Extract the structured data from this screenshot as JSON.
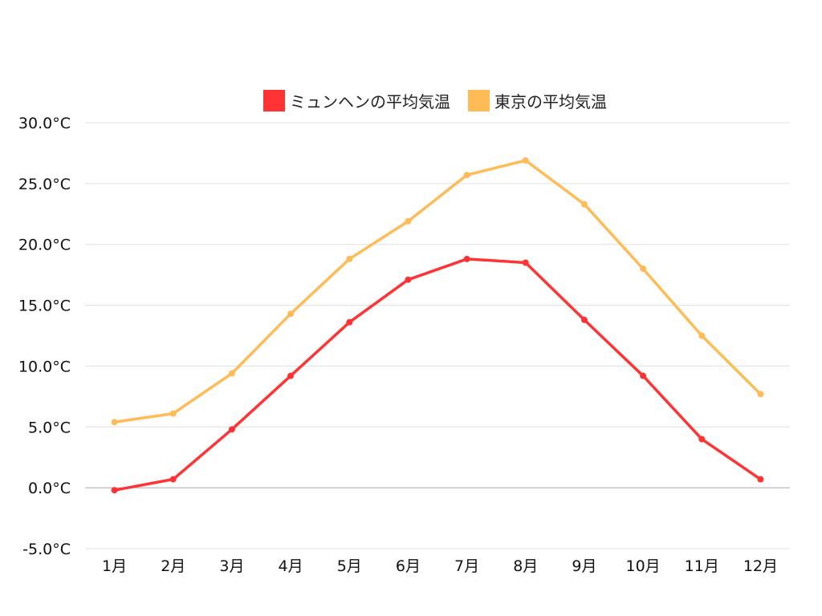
{
  "chart_data": {
    "type": "line",
    "categories": [
      "1月",
      "2月",
      "3月",
      "4月",
      "5月",
      "6月",
      "7月",
      "8月",
      "9月",
      "10月",
      "11月",
      "12月"
    ],
    "series": [
      {
        "name": "ミュンヘンの平均気温",
        "color": "#ff3333",
        "values": [
          -0.2,
          0.7,
          4.8,
          9.2,
          13.6,
          17.1,
          18.8,
          18.5,
          13.8,
          9.2,
          4.0,
          0.7
        ]
      },
      {
        "name": "東京の平均気温",
        "color": "#ffbb55",
        "values": [
          5.4,
          6.1,
          9.4,
          14.3,
          18.8,
          21.9,
          25.7,
          26.9,
          23.3,
          18.0,
          12.5,
          7.7
        ]
      }
    ],
    "yticks": [
      "30.0°C",
      "25.0°C",
      "20.0°C",
      "15.0°C",
      "10.0°C",
      "5.0°C",
      "0.0°C",
      "-5.0°C"
    ],
    "ytick_values": [
      30,
      25,
      20,
      15,
      10,
      5,
      0,
      -5
    ],
    "ylim": [
      -5,
      30
    ],
    "grid": true,
    "legend": "top"
  }
}
